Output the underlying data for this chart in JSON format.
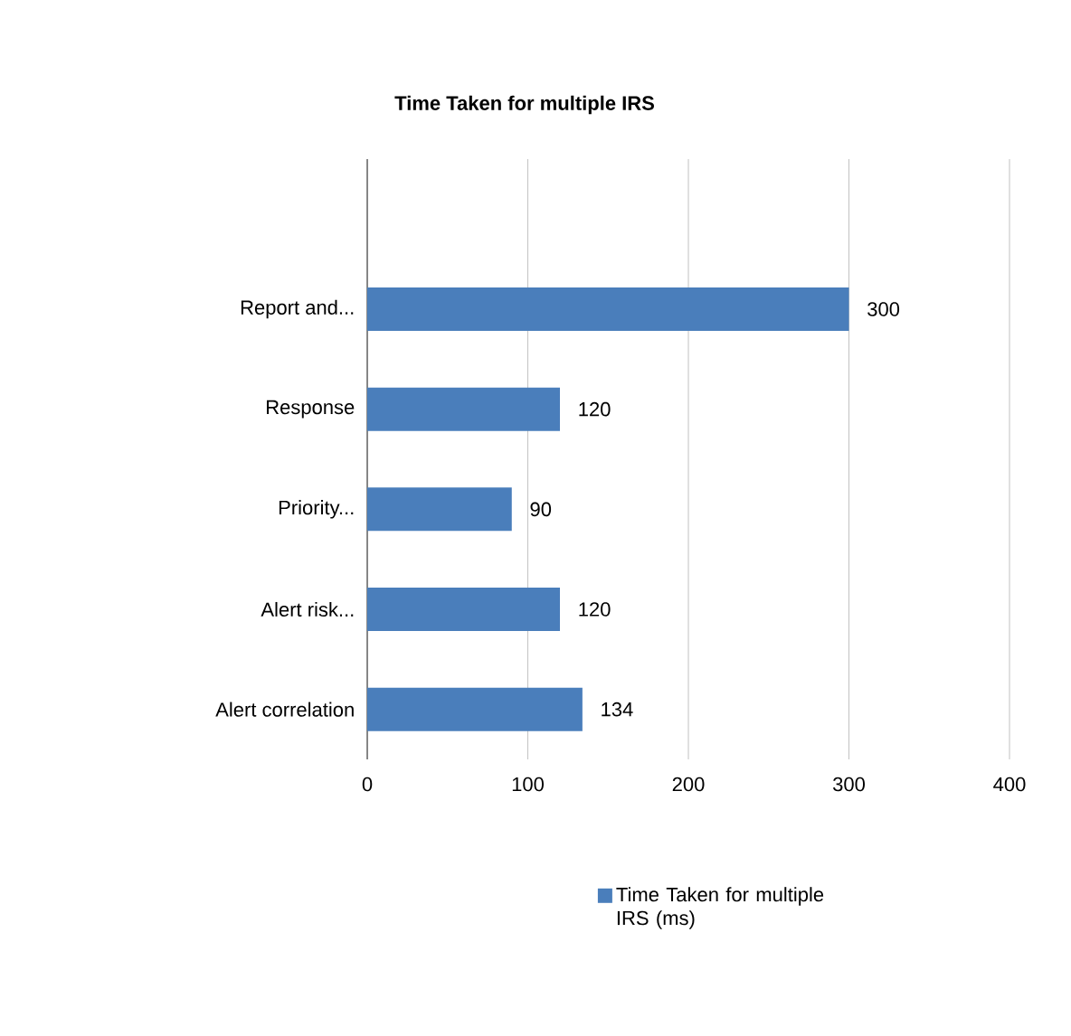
{
  "chart_data": {
    "type": "bar",
    "orientation": "horizontal",
    "title": "Time Taken  for multiple IRS",
    "categories": [
      "Report and...",
      "Response",
      "Priority...",
      "Alert risk...",
      "Alert correlation"
    ],
    "series": [
      {
        "name": "Time Taken for multiple IRS (ms)",
        "color": "#4a7ebb",
        "values": [
          300,
          120,
          90,
          120,
          134
        ]
      }
    ],
    "xlim": [
      0,
      400
    ],
    "xticks": [
      0,
      100,
      200,
      300,
      400
    ],
    "grid": "x",
    "legend": "bottom",
    "data_labels": true
  }
}
